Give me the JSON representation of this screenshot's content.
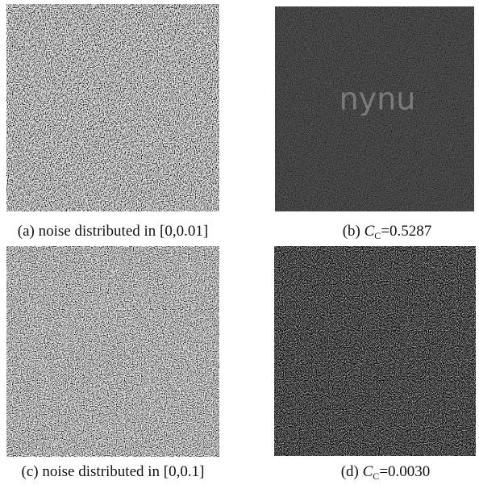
{
  "panels": [
    {
      "caption": {
        "prefix": "(a) noise distributed in [0,0.01]"
      }
    },
    {
      "overlay_text": "nynu",
      "caption": {
        "prefix": "(b) ",
        "symbol": "C",
        "subscript": "C",
        "text": "=0.5287"
      }
    },
    {
      "caption": {
        "prefix": "(c) noise distributed in [0,0.1]"
      }
    },
    {
      "caption": {
        "prefix": "(d) ",
        "symbol": "C",
        "subscript": "C",
        "text": "=0.0030"
      }
    }
  ]
}
